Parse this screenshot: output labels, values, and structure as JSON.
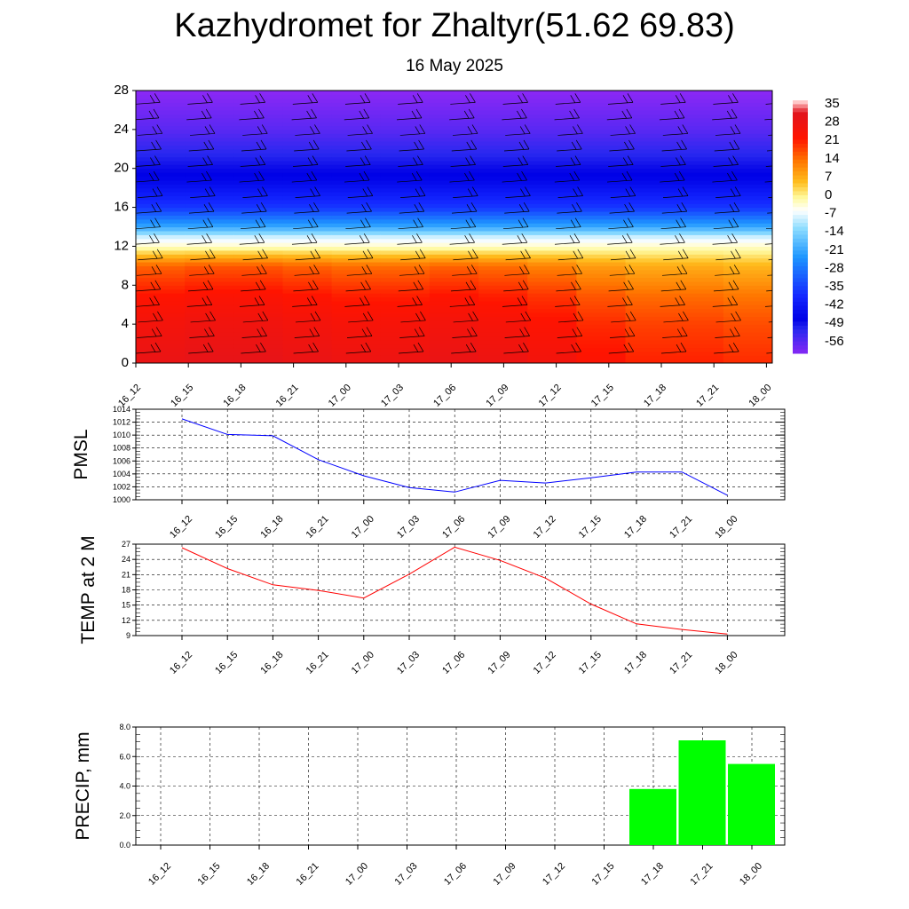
{
  "title": "Kazhydromet for Zhaltyr(51.62 69.83)",
  "subtitle": "16 May 2025",
  "colors": {
    "pmsl_line": "#0000ff",
    "temp_line": "#ff0000",
    "precip_bar": "#00ff00"
  },
  "chart_data": [
    {
      "type": "heatmap",
      "name": "upper-air temperature and wind cross-section",
      "x": [
        "16_12",
        "16_15",
        "16_18",
        "16_21",
        "17_00",
        "17_03",
        "17_06",
        "17_09",
        "17_12",
        "17_15",
        "17_18",
        "17_21",
        "18_00"
      ],
      "ylim": [
        0,
        28
      ],
      "yticks": [
        "0",
        "4",
        "8",
        "12",
        "16",
        "20",
        "24",
        "28"
      ],
      "colorbar": {
        "labels": [
          "35",
          "28",
          "21",
          "14",
          "7",
          "0",
          "-7",
          "-14",
          "-21",
          "-28",
          "-35",
          "-42",
          "-49",
          "-56"
        ]
      },
      "wind_barbs": true,
      "columns": [
        {
          "t": "16_12",
          "low": 28
        },
        {
          "t": "16_15",
          "low": 29
        },
        {
          "t": "16_18",
          "low": 29
        },
        {
          "t": "16_21",
          "low": 28
        },
        {
          "t": "17_00",
          "low": 27
        },
        {
          "t": "17_03",
          "low": 27
        },
        {
          "t": "17_06",
          "low": 28
        },
        {
          "t": "17_09",
          "low": 27
        },
        {
          "t": "17_12",
          "low": 25
        },
        {
          "t": "17_15",
          "low": 22
        },
        {
          "t": "17_18",
          "low": 20
        },
        {
          "t": "17_21",
          "low": 20
        },
        {
          "t": "18_00",
          "low": 19
        }
      ]
    },
    {
      "type": "line",
      "ylabel": "PMSL",
      "ylim": [
        1000,
        1014
      ],
      "yticks": [
        "1000",
        "1002",
        "1004",
        "1006",
        "1008",
        "1010",
        "1012",
        "1014"
      ],
      "x": [
        "16_12",
        "16_15",
        "16_18",
        "16_21",
        "17_00",
        "17_03",
        "17_06",
        "17_09",
        "17_12",
        "17_15",
        "17_18",
        "17_21",
        "18_00"
      ],
      "series": [
        {
          "values": [
            1012.5,
            1010.1,
            1009.9,
            1006.2,
            1003.7,
            1001.9,
            1001.2,
            1003.0,
            1002.6,
            1003.4,
            1004.3,
            1004.3,
            1000.7
          ]
        }
      ]
    },
    {
      "type": "line",
      "ylabel": "TEMP at 2 M",
      "ylim": [
        9,
        27
      ],
      "yticks": [
        "9",
        "12",
        "15",
        "18",
        "21",
        "24",
        "27"
      ],
      "x": [
        "16_12",
        "16_15",
        "16_18",
        "16_21",
        "17_00",
        "17_03",
        "17_06",
        "17_09",
        "17_12",
        "17_15",
        "17_18",
        "17_21",
        "18_00"
      ],
      "series": [
        {
          "values": [
            26.3,
            22.2,
            19.0,
            17.9,
            16.4,
            21.1,
            26.4,
            23.8,
            20.3,
            15.2,
            11.3,
            10.2,
            9.3
          ]
        }
      ]
    },
    {
      "type": "bar",
      "ylabel": "PRECIP, mm",
      "ylim": [
        0,
        8
      ],
      "yticks": [
        "0.0",
        "2.0",
        "4.0",
        "6.0",
        "8.0"
      ],
      "categories": [
        "16_12",
        "16_15",
        "16_18",
        "16_21",
        "17_00",
        "17_03",
        "17_06",
        "17_09",
        "17_12",
        "17_15",
        "17_18",
        "17_21",
        "18_00"
      ],
      "values": [
        0,
        0,
        0,
        0,
        0,
        0,
        0,
        0,
        0,
        0,
        3.8,
        7.1,
        5.5
      ]
    }
  ]
}
